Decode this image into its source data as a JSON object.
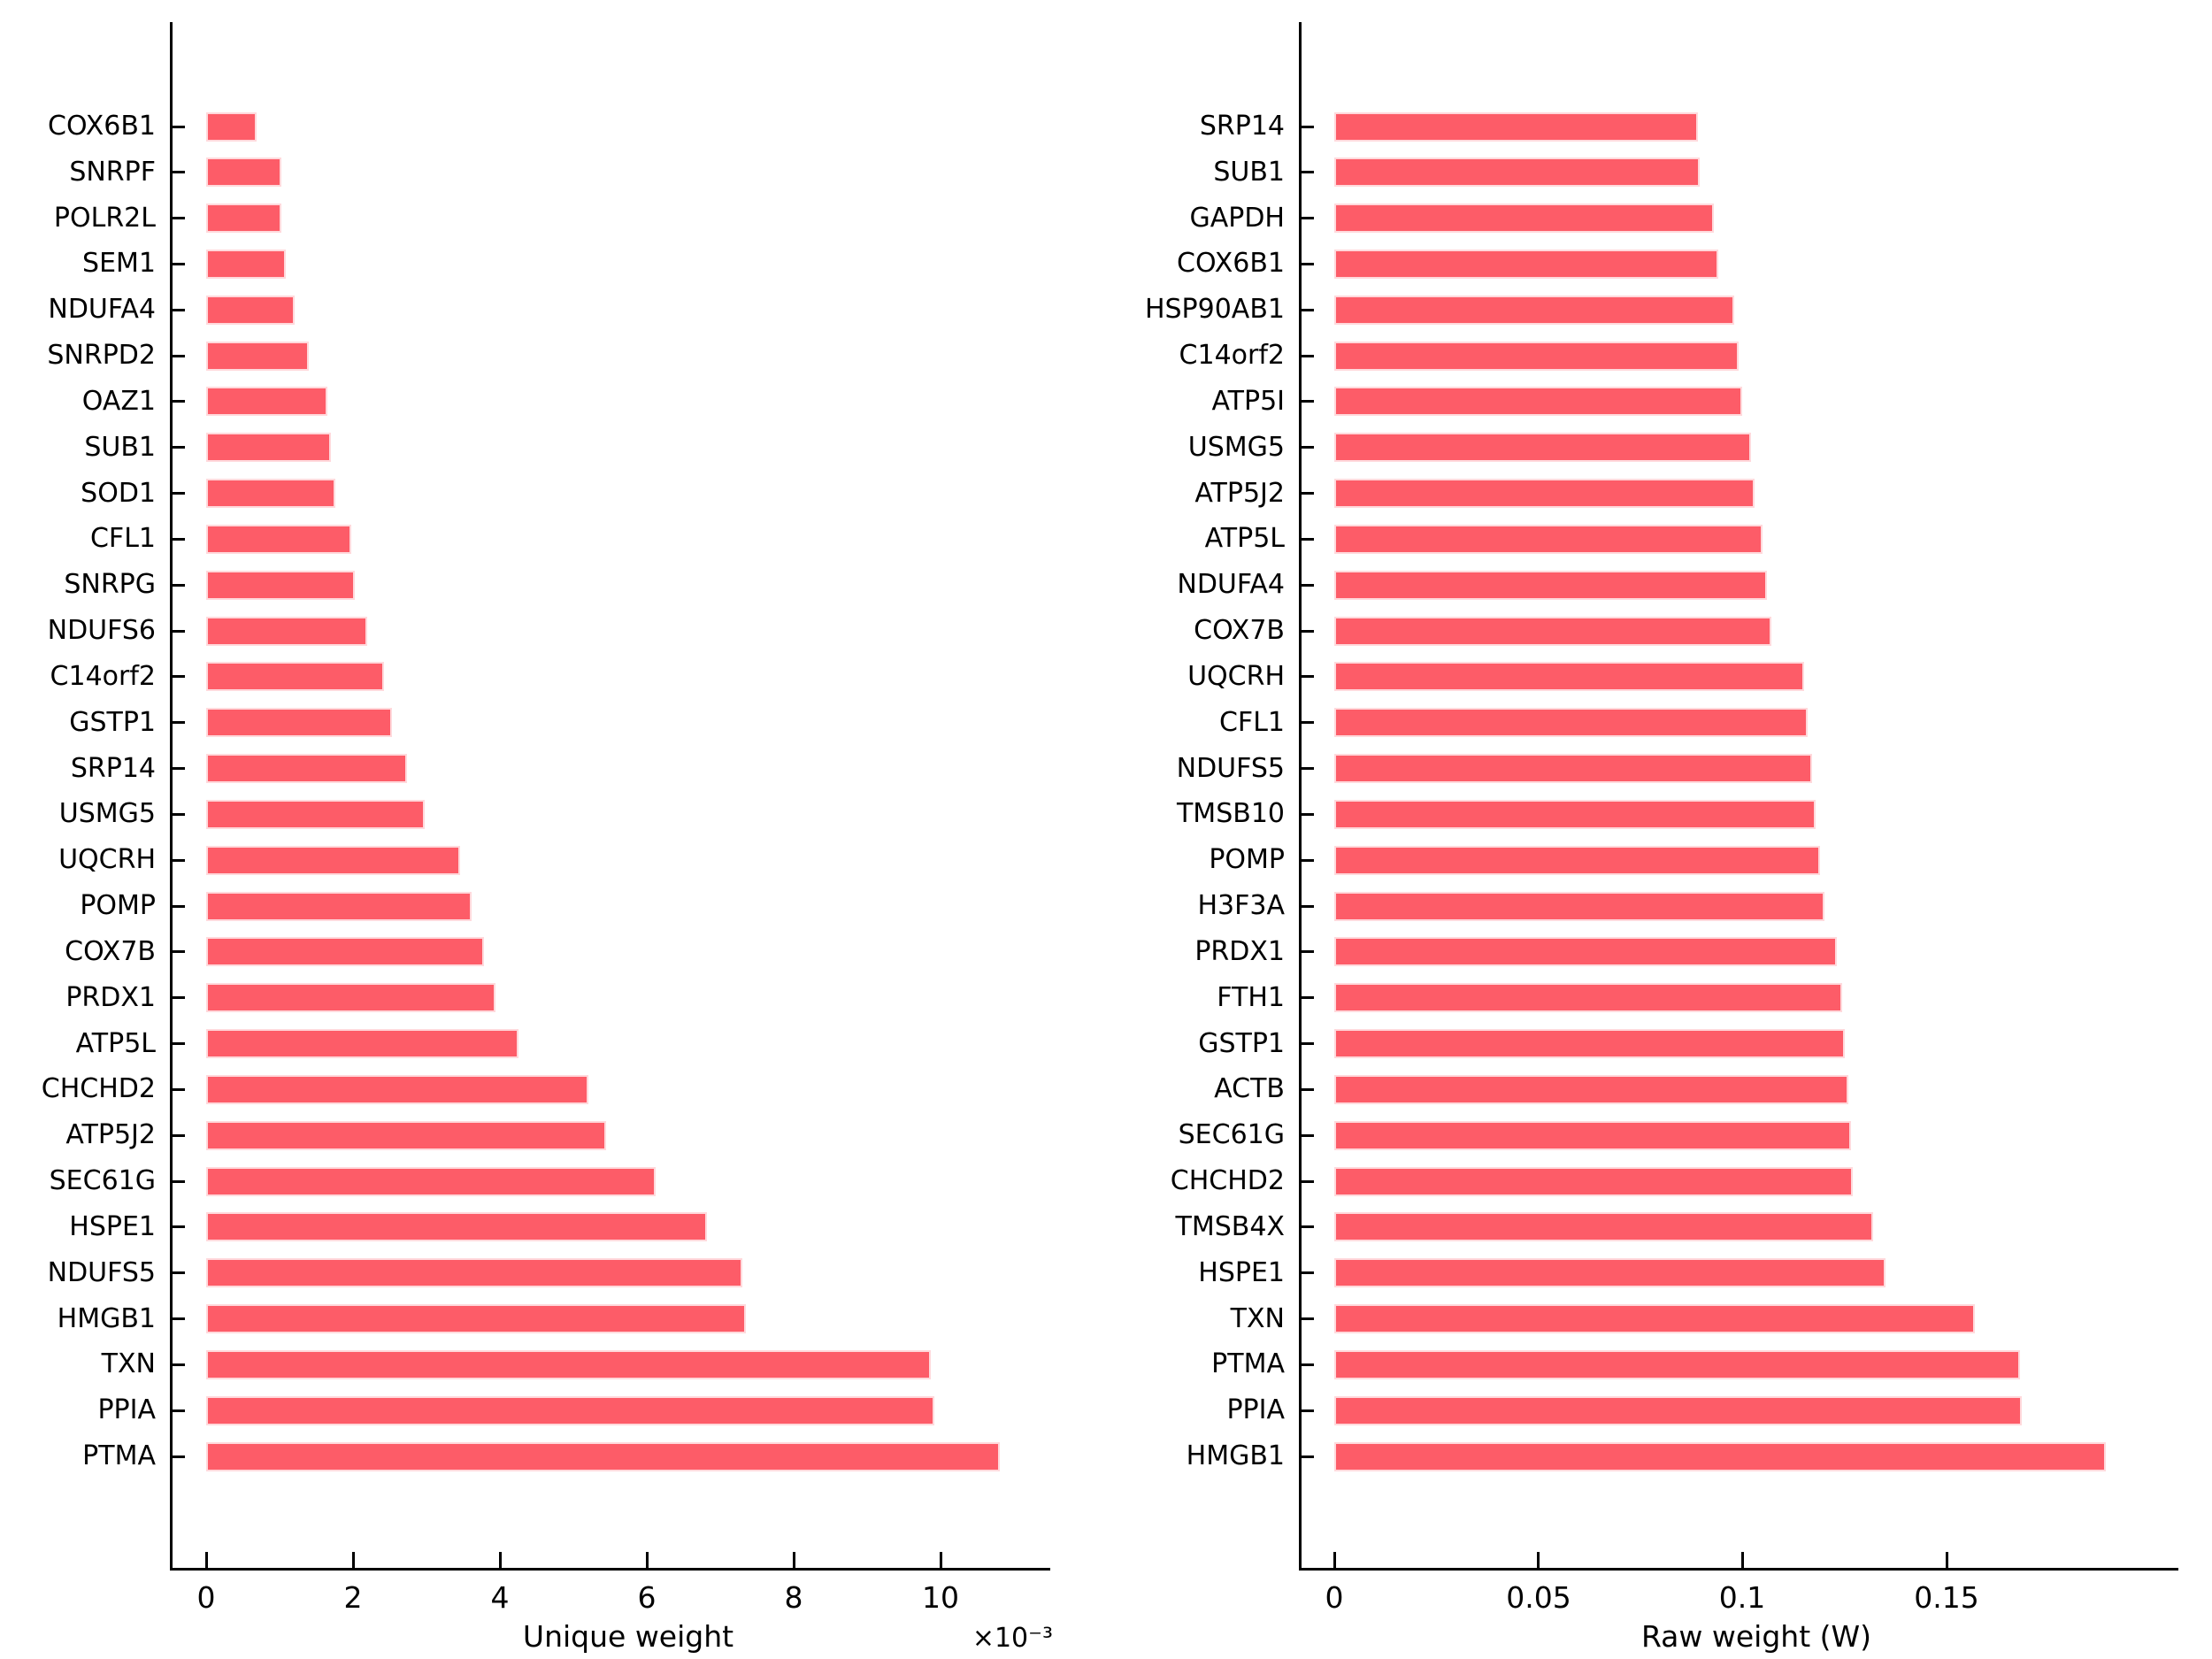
{
  "figure": {
    "background_color": "#ffffff",
    "bar_color": "#fd5c68",
    "bar_edge_color": "#ffd9dc",
    "axis_color": "#000000",
    "text_color": "#000000"
  },
  "chart_data": [
    {
      "type": "bar",
      "orientation": "horizontal",
      "title": "",
      "xlabel": "Unique weight",
      "x_axis_multiplier": "×10⁻³",
      "unit": "1e-3",
      "sort": "ascending top to bottom",
      "grid": false,
      "xlim": [
        -0.5,
        11.5
      ],
      "x_ticks": [
        0,
        2,
        4,
        6,
        8,
        10
      ],
      "x_tick_labels": [
        "0",
        "2",
        "4",
        "6",
        "8",
        "10"
      ],
      "categories_top_to_bottom": [
        "COX6B1",
        "SNRPF",
        "POLR2L",
        "SEM1",
        "NDUFA4",
        "SNRPD2",
        "OAZ1",
        "SUB1",
        "SOD1",
        "CFL1",
        "SNRPG",
        "NDUFS6",
        "C14orf2",
        "GSTP1",
        "SRP14",
        "USMG5",
        "UQCRH",
        "POMP",
        "COX7B",
        "PRDX1",
        "ATP5L",
        "CHCHD2",
        "ATP5J2",
        "SEC61G",
        "HSPE1",
        "NDUFS5",
        "HMGB1",
        "TXN",
        "PPIA",
        "PTMA"
      ],
      "values_x1e3": [
        0.69,
        1.02,
        1.03,
        1.08,
        1.2,
        1.4,
        1.65,
        1.7,
        1.76,
        1.98,
        2.02,
        2.19,
        2.42,
        2.53,
        2.74,
        2.98,
        3.46,
        3.61,
        3.78,
        3.94,
        4.25,
        5.21,
        5.44,
        6.12,
        6.82,
        7.3,
        7.35,
        9.87,
        9.91,
        10.81
      ]
    },
    {
      "type": "bar",
      "orientation": "horizontal",
      "title": "",
      "xlabel": "Raw weight (W)",
      "unit": "W",
      "sort": "ascending top to bottom",
      "grid": false,
      "xlim": [
        -0.009,
        0.207
      ],
      "x_ticks": [
        0,
        0.05,
        0.1,
        0.15
      ],
      "x_tick_labels": [
        "0",
        "0.05",
        "0.1",
        "0.15"
      ],
      "categories_top_to_bottom": [
        "SRP14",
        "SUB1",
        "GAPDH",
        "COX6B1",
        "HSP90AB1",
        "C14orf2",
        "ATP5I",
        "USMG5",
        "ATP5J2",
        "ATP5L",
        "NDUFA4",
        "COX7B",
        "UQCRH",
        "CFL1",
        "NDUFS5",
        "TMSB10",
        "POMP",
        "H3F3A",
        "PRDX1",
        "FTH1",
        "GSTP1",
        "ACTB",
        "SEC61G",
        "CHCHD2",
        "TMSB4X",
        "HSPE1",
        "TXN",
        "PTMA",
        "PPIA",
        "HMGB1"
      ],
      "values": [
        0.089,
        0.0895,
        0.093,
        0.094,
        0.098,
        0.099,
        0.1,
        0.102,
        0.103,
        0.105,
        0.106,
        0.107,
        0.115,
        0.116,
        0.117,
        0.118,
        0.119,
        0.12,
        0.123,
        0.1245,
        0.125,
        0.126,
        0.1265,
        0.127,
        0.132,
        0.135,
        0.157,
        0.168,
        0.1685,
        0.189
      ]
    }
  ]
}
